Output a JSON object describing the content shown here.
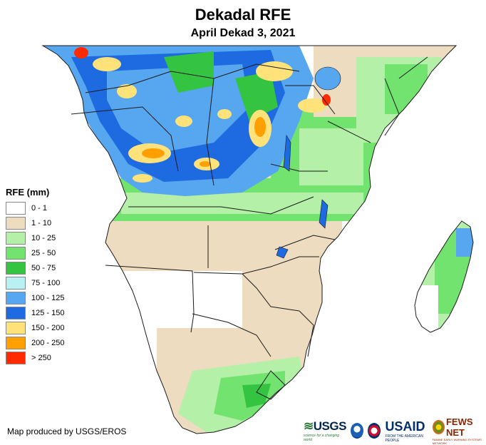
{
  "map": {
    "title": "Dekadal RFE",
    "subtitle": "April Dekad 3, 2021",
    "credit": "Map produced by USGS/EROS"
  },
  "legend": {
    "title": "RFE (mm)",
    "items": [
      {
        "label": "0 - 1",
        "color": "#ffffff"
      },
      {
        "label": "1 - 10",
        "color": "#eddcbf"
      },
      {
        "label": "10 - 25",
        "color": "#b4f0a8"
      },
      {
        "label": "25 - 50",
        "color": "#72e36f"
      },
      {
        "label": "50 - 75",
        "color": "#34c442"
      },
      {
        "label": "75 - 100",
        "color": "#b9f0f2"
      },
      {
        "label": "100 - 125",
        "color": "#56a6f0"
      },
      {
        "label": "125 - 150",
        "color": "#1e6ae0"
      },
      {
        "label": "150 - 200",
        "color": "#ffe27a"
      },
      {
        "label": "200 - 250",
        "color": "#ff9f00"
      },
      {
        "label": "> 250",
        "color": "#ff2a00"
      }
    ]
  },
  "logos": {
    "usgs": "USGS",
    "usgs_tagline": "science for a changing world",
    "usaid": "USAID",
    "usaid_tagline": "FROM THE AMERICAN PEOPLE",
    "fews": "FEWS NET",
    "fews_tagline": "FAMINE EARLY WARNING SYSTEMS NETWORK"
  },
  "colors": {
    "border": "#1a1a1a",
    "lake": "#1e6ae0"
  }
}
